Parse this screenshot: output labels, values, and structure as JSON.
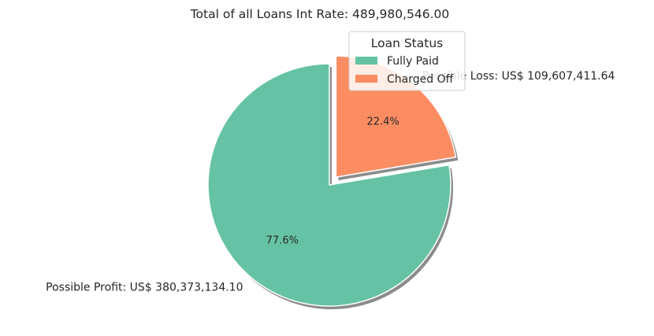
{
  "chart_data": {
    "type": "pie",
    "title": "Total of all Loans Int Rate: 489,980,546.00",
    "categories": [
      "Fully Paid",
      "Charged Off"
    ],
    "values": [
      380373134.1,
      109607411.64
    ],
    "percent_labels": [
      "77.6%",
      "22.4%"
    ],
    "slice_labels": [
      "Possible Profit: US$ 380,373,134.10",
      "Possible Loss: US$ 109,607,411.64"
    ],
    "colors": [
      "#66c2a5",
      "#fc8d62"
    ],
    "exploded": [
      false,
      true
    ],
    "shadow": true,
    "legend": {
      "title": "Loan Status",
      "entries": [
        "Fully Paid",
        "Charged Off"
      ],
      "placement": "upper-right"
    }
  }
}
